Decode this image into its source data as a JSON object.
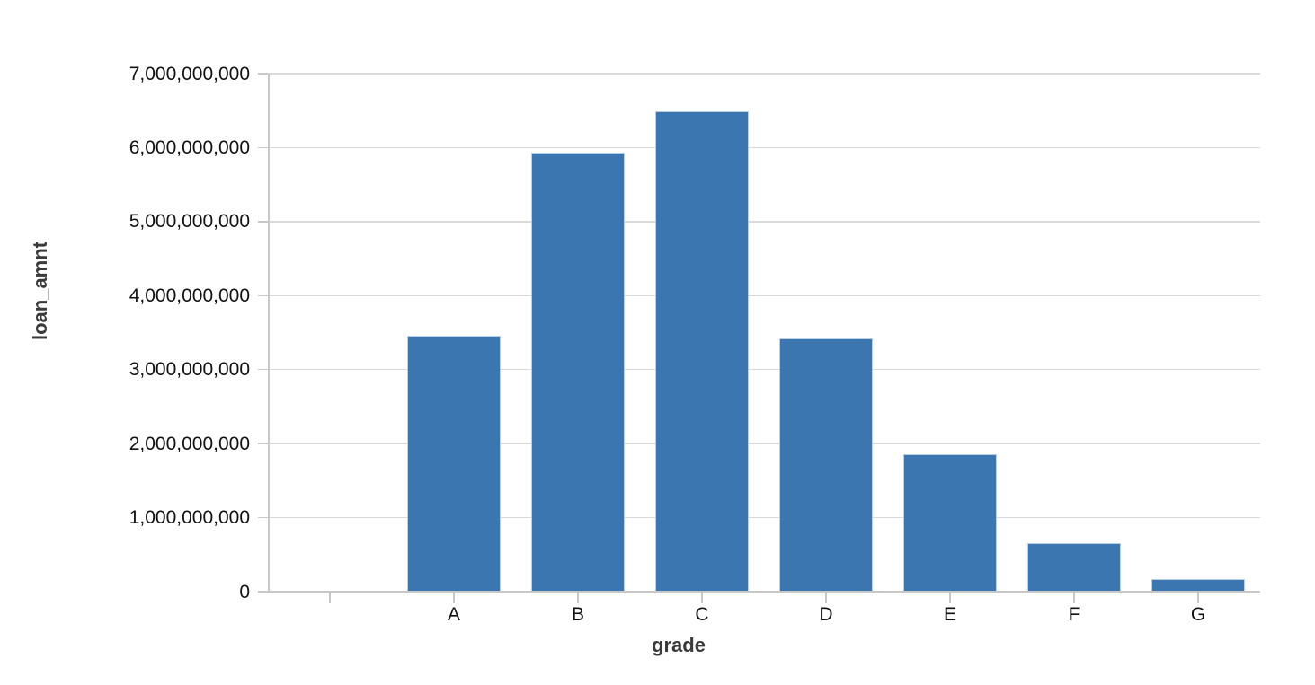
{
  "chart_data": {
    "type": "bar",
    "title": "",
    "xlabel": "grade",
    "ylabel": "loan_amnt",
    "categories": [
      "",
      "A",
      "B",
      "C",
      "D",
      "E",
      "F",
      "G"
    ],
    "values": [
      0,
      3460000000,
      5930000000,
      6490000000,
      3420000000,
      1860000000,
      660000000,
      170000000
    ],
    "ylim": [
      0,
      7000000000
    ],
    "ytick_step": 1000000000,
    "ytick_labels": [
      "0",
      "1,000,000,000",
      "2,000,000,000",
      "3,000,000,000",
      "4,000,000,000",
      "5,000,000,000",
      "6,000,000,000",
      "7,000,000,000"
    ],
    "grid": true,
    "legend": "none",
    "colors": {
      "bar_fill": "#3c76b0",
      "bar_stroke": "#b9d1e6",
      "gridline": "#d9d9d9",
      "axis_line": "#c8c8c8",
      "tick_label": "#111111",
      "axis_title": "#3a3a3a",
      "background": "#ffffff"
    }
  }
}
